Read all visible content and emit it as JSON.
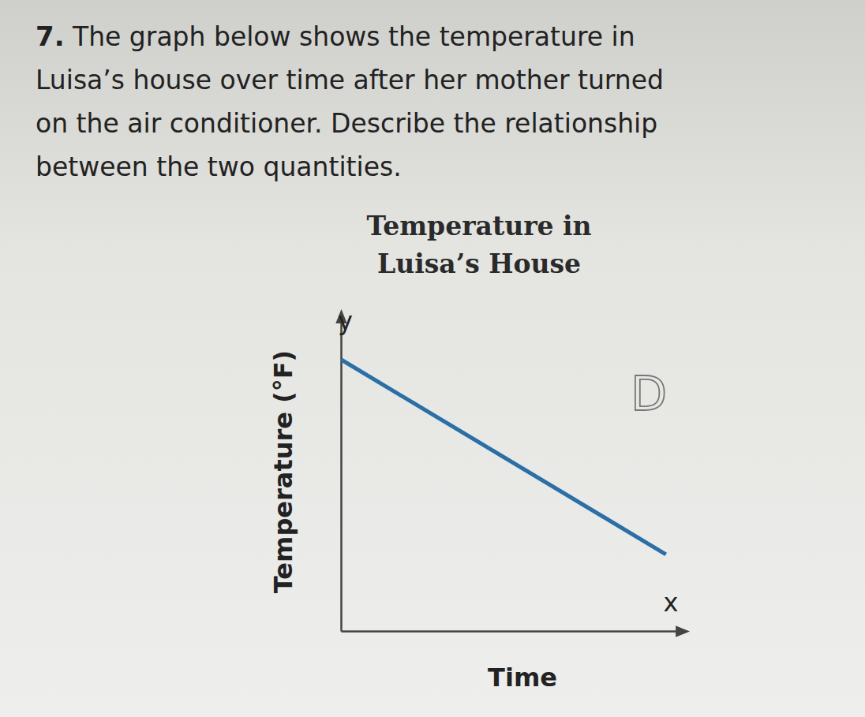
{
  "question": {
    "number": "7.",
    "lines": [
      "The graph below shows the temperature in",
      "Luisa’s house over time after her mother turned",
      "on the air conditioner. Describe the relationship",
      "between the two quantities."
    ]
  },
  "chart_data": {
    "type": "line",
    "title": [
      "Temperature in",
      "Luisa’s House"
    ],
    "x_label": "Time",
    "y_label": "Temperature (°F)",
    "x_variable": "x",
    "y_variable": "y",
    "x": [
      0,
      9.4
    ],
    "values": [
      8.5,
      2.4
    ],
    "color": "#2a6fa6",
    "xlim": [
      0,
      10
    ],
    "ylim": [
      0,
      10
    ],
    "xticks": [],
    "yticks": [],
    "tick_labels": false,
    "grid": false,
    "annotations": [
      "D"
    ]
  }
}
